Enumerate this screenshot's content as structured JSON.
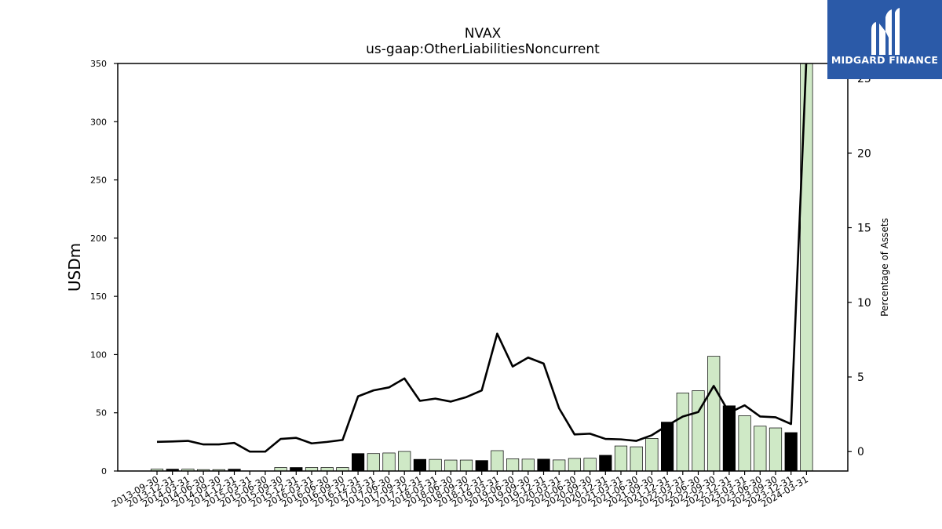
{
  "chart_data": {
    "type": "bar",
    "title": "NVAX",
    "subtitle": "us-gaap:OtherLiabilitiesNoncurrent",
    "ylabel": "USDm",
    "y2label": "Percentage of Assets",
    "ylim": [
      0,
      350
    ],
    "y2lim": [
      -1.3,
      26
    ],
    "yticks": [
      0,
      50,
      100,
      150,
      200,
      250,
      300,
      350
    ],
    "y2ticks": [
      0,
      5,
      10,
      15,
      20,
      25
    ],
    "categories": [
      "2013-09-30",
      "2013-12-31",
      "2014-03-31",
      "2014-06-30",
      "2014-09-30",
      "2014-12-31",
      "2015-03-31",
      "2015-06-30",
      "2015-09-30",
      "2015-12-31",
      "2016-03-31",
      "2016-06-30",
      "2016-09-30",
      "2016-12-31",
      "2017-03-31",
      "2017-06-30",
      "2017-09-30",
      "2017-12-31",
      "2018-03-31",
      "2018-06-30",
      "2018-09-30",
      "2018-12-31",
      "2019-03-31",
      "2019-06-30",
      "2019-09-30",
      "2019-12-31",
      "2020-03-31",
      "2020-06-30",
      "2020-09-30",
      "2020-12-31",
      "2021-03-31",
      "2021-06-30",
      "2021-09-30",
      "2021-12-31",
      "2022-03-31",
      "2022-06-30",
      "2022-09-30",
      "2022-12-31",
      "2023-03-31",
      "2023-06-30",
      "2023-09-30",
      "2023-12-31",
      "2024-03-31"
    ],
    "series": [
      {
        "kind": "bar",
        "values": [
          1.6,
          1.6,
          1.6,
          1.2,
          1.2,
          1.6,
          0,
          0,
          3,
          3,
          3,
          3,
          3,
          15,
          15,
          15.5,
          16.8,
          10,
          10,
          9.4,
          9.4,
          9,
          17.5,
          10.5,
          10.2,
          10.2,
          9.5,
          10.8,
          11,
          13.5,
          21.5,
          20.8,
          28,
          42,
          67,
          69,
          98.5,
          56,
          47.5,
          38.5,
          37,
          33,
          352
        ],
        "highlight": [
          false,
          true,
          false,
          false,
          false,
          true,
          false,
          false,
          false,
          true,
          false,
          false,
          false,
          true,
          false,
          false,
          false,
          true,
          false,
          false,
          false,
          true,
          false,
          false,
          false,
          true,
          false,
          false,
          false,
          true,
          false,
          false,
          false,
          true,
          false,
          false,
          false,
          true,
          false,
          false,
          false,
          true,
          false
        ],
        "colors": {
          "normal": "#cfe9c6",
          "highlight": "#000000"
        }
      },
      {
        "kind": "line",
        "axis": "right",
        "values": [
          0.65,
          0.68,
          0.72,
          0.48,
          0.48,
          0.58,
          0.0,
          0.0,
          0.85,
          0.92,
          0.55,
          0.65,
          0.78,
          3.7,
          4.1,
          4.3,
          4.9,
          3.4,
          3.55,
          3.35,
          3.65,
          4.1,
          7.9,
          5.7,
          6.3,
          5.9,
          2.9,
          1.15,
          1.2,
          0.85,
          0.82,
          0.72,
          1.1,
          1.75,
          2.35,
          2.65,
          4.4,
          2.6,
          3.1,
          2.35,
          2.3,
          1.85,
          26.5
        ]
      }
    ]
  },
  "logo": {
    "brand": "MIDGARD FINANCE"
  }
}
